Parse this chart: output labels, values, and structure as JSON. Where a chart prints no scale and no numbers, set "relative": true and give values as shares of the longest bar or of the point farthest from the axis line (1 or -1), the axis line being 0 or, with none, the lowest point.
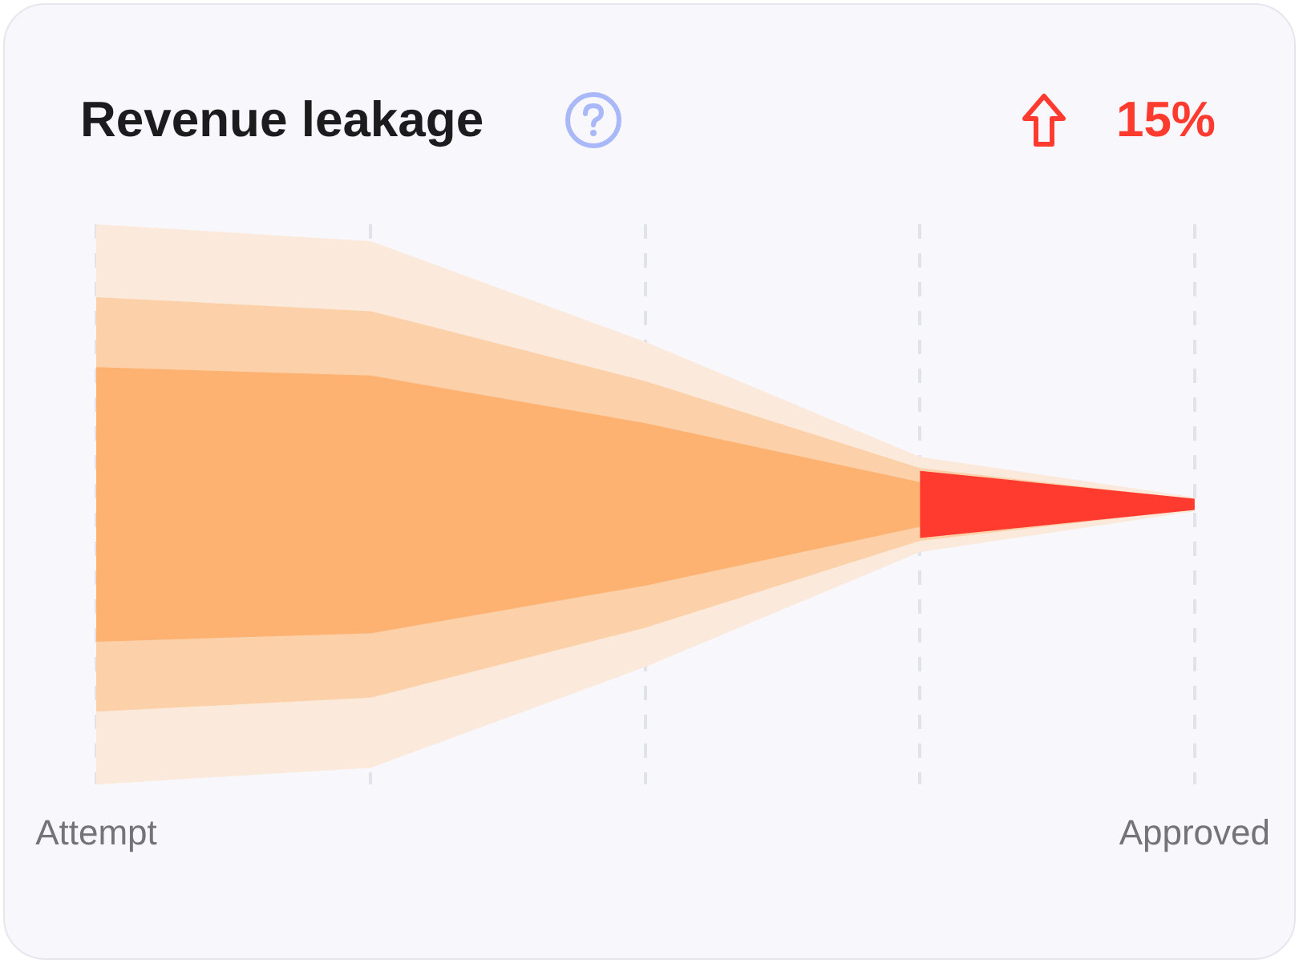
{
  "chart_data": {
    "type": "area",
    "title": "Revenue leakage",
    "annotations": [
      "15%"
    ],
    "categories": [
      "Attempt",
      null,
      null,
      null,
      "Approved"
    ],
    "relative": true,
    "grid": "x",
    "series": [
      {
        "color": "#fbeadb",
        "values": [
          1,
          0.94,
          0.58,
          0.17,
          0.025
        ]
      },
      {
        "color": "#fcd0a8",
        "values": [
          0.74,
          0.69,
          0.44,
          0.13,
          0.018
        ]
      },
      {
        "color": "#fdb271",
        "values": [
          0.49,
          0.46,
          0.29,
          0.08,
          0.012
        ]
      },
      {
        "color": "#ff3b30",
        "values": [
          null,
          null,
          null,
          0.12,
          0.02
        ]
      }
    ]
  }
}
